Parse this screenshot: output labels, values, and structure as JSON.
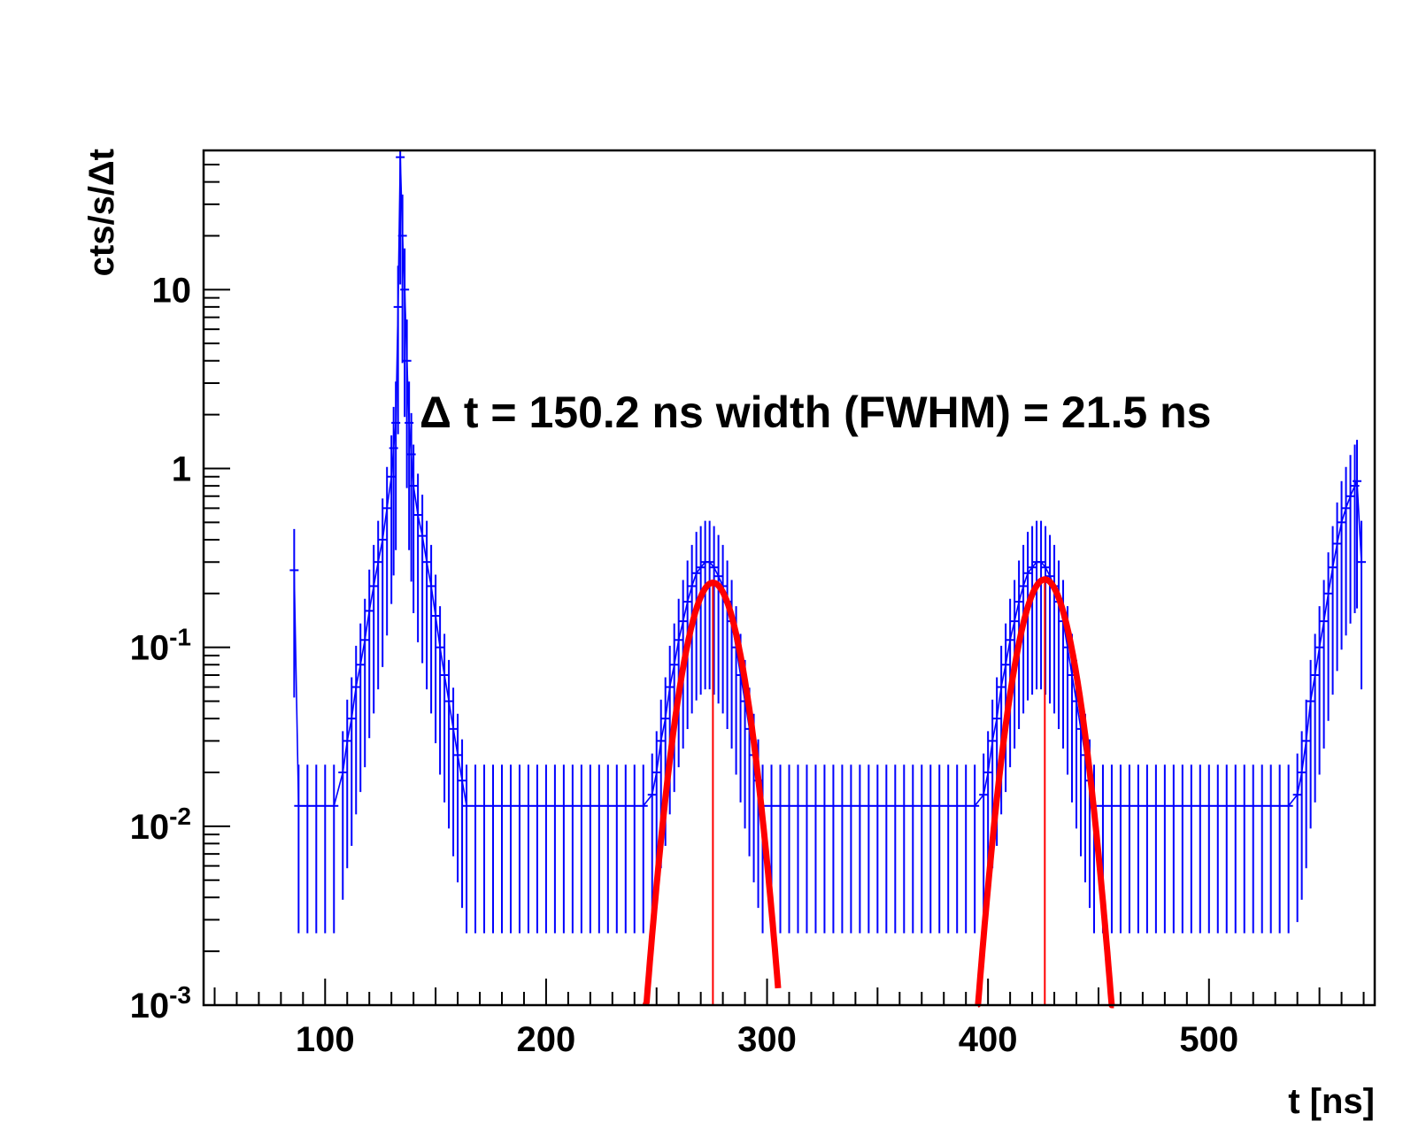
{
  "chart_data": {
    "type": "scatter",
    "title": "",
    "xlabel": "t [ns]",
    "ylabel": "cts/s/Δt",
    "xlim": [
      45,
      575
    ],
    "ylim": [
      0.001,
      60
    ],
    "yscale": "log",
    "grid": false,
    "legend": "none",
    "x_ticks": [
      {
        "value": 100,
        "label": "100"
      },
      {
        "value": 200,
        "label": "200"
      },
      {
        "value": 300,
        "label": "300"
      },
      {
        "value": 400,
        "label": "400"
      },
      {
        "value": 500,
        "label": "500"
      }
    ],
    "y_ticks": [
      {
        "value": 0.001,
        "base": "10",
        "exp": "-3"
      },
      {
        "value": 0.01,
        "base": "10",
        "exp": "-2"
      },
      {
        "value": 0.1,
        "base": "10",
        "exp": "-1"
      },
      {
        "value": 1,
        "base": "1",
        "exp": ""
      },
      {
        "value": 10,
        "base": "10",
        "exp": ""
      }
    ],
    "annotation": "Δ t = 150.2 ns  width (FWHM) = 21.5 ns",
    "colors": {
      "data": "#0000ff",
      "fit": "#ff0000",
      "axis": "#000000"
    },
    "series": [
      {
        "kind": "histogram",
        "points": [
          [
            86,
            0.27
          ],
          [
            88,
            0.013
          ],
          [
            92,
            0.013
          ],
          [
            96,
            0.013
          ],
          [
            100,
            0.013
          ],
          [
            104,
            0.013
          ],
          [
            108,
            0.02
          ],
          [
            110,
            0.03
          ],
          [
            112,
            0.04
          ],
          [
            114,
            0.06
          ],
          [
            116,
            0.08
          ],
          [
            118,
            0.11
          ],
          [
            120,
            0.16
          ],
          [
            122,
            0.22
          ],
          [
            124,
            0.3
          ],
          [
            126,
            0.4
          ],
          [
            128,
            0.6
          ],
          [
            130,
            0.9
          ],
          [
            131,
            1.3
          ],
          [
            132,
            1.8
          ],
          [
            133,
            8.0
          ],
          [
            134,
            55.0
          ],
          [
            135,
            20.0
          ],
          [
            136,
            10.0
          ],
          [
            137,
            4.0
          ],
          [
            138,
            1.8
          ],
          [
            139,
            1.2
          ],
          [
            140,
            0.8
          ],
          [
            142,
            0.55
          ],
          [
            144,
            0.42
          ],
          [
            146,
            0.3
          ],
          [
            148,
            0.22
          ],
          [
            150,
            0.15
          ],
          [
            152,
            0.1
          ],
          [
            154,
            0.07
          ],
          [
            156,
            0.05
          ],
          [
            158,
            0.035
          ],
          [
            160,
            0.025
          ],
          [
            162,
            0.018
          ],
          [
            164,
            0.013
          ],
          [
            168,
            0.013
          ],
          [
            172,
            0.013
          ],
          [
            176,
            0.013
          ],
          [
            180,
            0.013
          ],
          [
            184,
            0.013
          ],
          [
            188,
            0.013
          ],
          [
            192,
            0.013
          ],
          [
            196,
            0.013
          ],
          [
            200,
            0.013
          ],
          [
            204,
            0.013
          ],
          [
            208,
            0.013
          ],
          [
            212,
            0.013
          ],
          [
            216,
            0.013
          ],
          [
            220,
            0.013
          ],
          [
            224,
            0.013
          ],
          [
            228,
            0.013
          ],
          [
            232,
            0.013
          ],
          [
            236,
            0.013
          ],
          [
            240,
            0.013
          ],
          [
            244,
            0.013
          ],
          [
            248,
            0.015
          ],
          [
            250,
            0.02
          ],
          [
            252,
            0.03
          ],
          [
            254,
            0.04
          ],
          [
            256,
            0.06
          ],
          [
            258,
            0.08
          ],
          [
            260,
            0.11
          ],
          [
            262,
            0.14
          ],
          [
            264,
            0.18
          ],
          [
            266,
            0.22
          ],
          [
            268,
            0.26
          ],
          [
            270,
            0.28
          ],
          [
            272,
            0.3
          ],
          [
            274,
            0.3
          ],
          [
            276,
            0.28
          ],
          [
            278,
            0.25
          ],
          [
            280,
            0.22
          ],
          [
            282,
            0.18
          ],
          [
            284,
            0.14
          ],
          [
            286,
            0.1
          ],
          [
            288,
            0.07
          ],
          [
            290,
            0.05
          ],
          [
            292,
            0.035
          ],
          [
            294,
            0.025
          ],
          [
            296,
            0.018
          ],
          [
            298,
            0.013
          ],
          [
            302,
            0.013
          ],
          [
            306,
            0.013
          ],
          [
            310,
            0.013
          ],
          [
            314,
            0.013
          ],
          [
            318,
            0.013
          ],
          [
            322,
            0.013
          ],
          [
            326,
            0.013
          ],
          [
            330,
            0.013
          ],
          [
            334,
            0.013
          ],
          [
            338,
            0.013
          ],
          [
            342,
            0.013
          ],
          [
            346,
            0.013
          ],
          [
            350,
            0.013
          ],
          [
            354,
            0.013
          ],
          [
            358,
            0.013
          ],
          [
            362,
            0.013
          ],
          [
            366,
            0.013
          ],
          [
            370,
            0.013
          ],
          [
            374,
            0.013
          ],
          [
            378,
            0.013
          ],
          [
            382,
            0.013
          ],
          [
            386,
            0.013
          ],
          [
            390,
            0.013
          ],
          [
            394,
            0.013
          ],
          [
            398,
            0.015
          ],
          [
            400,
            0.02
          ],
          [
            402,
            0.03
          ],
          [
            404,
            0.04
          ],
          [
            406,
            0.06
          ],
          [
            408,
            0.08
          ],
          [
            410,
            0.11
          ],
          [
            412,
            0.14
          ],
          [
            414,
            0.18
          ],
          [
            416,
            0.22
          ],
          [
            418,
            0.26
          ],
          [
            420,
            0.28
          ],
          [
            422,
            0.3
          ],
          [
            424,
            0.3
          ],
          [
            426,
            0.28
          ],
          [
            428,
            0.25
          ],
          [
            430,
            0.22
          ],
          [
            432,
            0.18
          ],
          [
            434,
            0.14
          ],
          [
            436,
            0.1
          ],
          [
            438,
            0.07
          ],
          [
            440,
            0.05
          ],
          [
            442,
            0.035
          ],
          [
            444,
            0.025
          ],
          [
            446,
            0.018
          ],
          [
            448,
            0.013
          ],
          [
            452,
            0.013
          ],
          [
            456,
            0.013
          ],
          [
            460,
            0.013
          ],
          [
            464,
            0.013
          ],
          [
            468,
            0.013
          ],
          [
            472,
            0.013
          ],
          [
            476,
            0.013
          ],
          [
            480,
            0.013
          ],
          [
            484,
            0.013
          ],
          [
            488,
            0.013
          ],
          [
            492,
            0.013
          ],
          [
            496,
            0.013
          ],
          [
            500,
            0.013
          ],
          [
            504,
            0.013
          ],
          [
            508,
            0.013
          ],
          [
            512,
            0.013
          ],
          [
            516,
            0.013
          ],
          [
            520,
            0.013
          ],
          [
            524,
            0.013
          ],
          [
            528,
            0.013
          ],
          [
            532,
            0.013
          ],
          [
            536,
            0.013
          ],
          [
            540,
            0.015
          ],
          [
            542,
            0.02
          ],
          [
            544,
            0.03
          ],
          [
            546,
            0.05
          ],
          [
            548,
            0.07
          ],
          [
            550,
            0.1
          ],
          [
            552,
            0.14
          ],
          [
            554,
            0.2
          ],
          [
            556,
            0.28
          ],
          [
            558,
            0.38
          ],
          [
            560,
            0.5
          ],
          [
            562,
            0.6
          ],
          [
            564,
            0.7
          ],
          [
            566,
            0.8
          ],
          [
            567,
            0.85
          ],
          [
            569,
            0.3
          ]
        ]
      },
      {
        "kind": "fit",
        "peaks": [
          {
            "mean": 275.5,
            "peak_value": 0.23,
            "x_range": [
              245,
              305
            ]
          },
          {
            "mean": 425.7,
            "peak_value": 0.24,
            "x_range": [
              395,
              457
            ]
          }
        ]
      }
    ]
  }
}
